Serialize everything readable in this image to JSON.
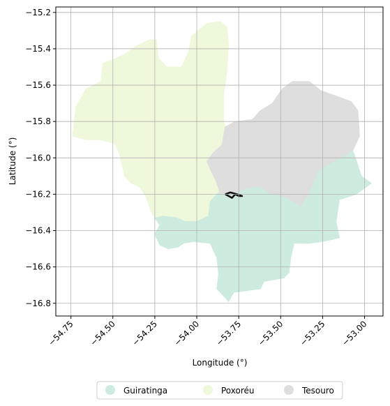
{
  "chart_data": {
    "type": "map",
    "xlabel": "Longitude (°)",
    "ylabel": "Latitude (°)",
    "xlim": [
      -54.84,
      -52.89
    ],
    "ylim": [
      -16.87,
      -15.17
    ],
    "grid": true,
    "legend_placement": "bottom-center",
    "x_ticks": [
      {
        "value": -54.75,
        "label": "−54.75"
      },
      {
        "value": -54.5,
        "label": "−54.50"
      },
      {
        "value": -54.25,
        "label": "−54.25"
      },
      {
        "value": -54.0,
        "label": "−54.00"
      },
      {
        "value": -53.75,
        "label": "−53.75"
      },
      {
        "value": -53.5,
        "label": "−53.50"
      },
      {
        "value": -53.25,
        "label": "−53.25"
      },
      {
        "value": -53.0,
        "label": "−53.00"
      }
    ],
    "y_ticks": [
      {
        "value": -15.2,
        "label": "−15.2"
      },
      {
        "value": -15.4,
        "label": "−15.4"
      },
      {
        "value": -15.6,
        "label": "−15.6"
      },
      {
        "value": -15.8,
        "label": "−15.8"
      },
      {
        "value": -16.0,
        "label": "−16.0"
      },
      {
        "value": -16.2,
        "label": "−16.2"
      },
      {
        "value": -16.4,
        "label": "−16.4"
      },
      {
        "value": -16.6,
        "label": "−16.6"
      },
      {
        "value": -16.8,
        "label": "−16.8"
      }
    ],
    "regions": [
      {
        "name": "Poxoréu",
        "color": "#eef9dc",
        "polygon": [
          [
            -54.74,
            -15.88
          ],
          [
            -54.72,
            -15.72
          ],
          [
            -54.66,
            -15.62
          ],
          [
            -54.57,
            -15.58
          ],
          [
            -54.56,
            -15.48
          ],
          [
            -54.5,
            -15.46
          ],
          [
            -54.43,
            -15.43
          ],
          [
            -54.35,
            -15.38
          ],
          [
            -54.28,
            -15.35
          ],
          [
            -54.24,
            -15.35
          ],
          [
            -54.23,
            -15.45
          ],
          [
            -54.18,
            -15.5
          ],
          [
            -54.09,
            -15.5
          ],
          [
            -54.05,
            -15.42
          ],
          [
            -54.03,
            -15.33
          ],
          [
            -53.98,
            -15.29
          ],
          [
            -53.94,
            -15.26
          ],
          [
            -53.86,
            -15.25
          ],
          [
            -53.82,
            -15.28
          ],
          [
            -53.81,
            -15.38
          ],
          [
            -53.82,
            -15.52
          ],
          [
            -53.84,
            -15.65
          ],
          [
            -53.84,
            -15.8
          ],
          [
            -53.81,
            -15.88
          ],
          [
            -53.82,
            -15.95
          ],
          [
            -53.87,
            -16.03
          ],
          [
            -53.85,
            -16.1
          ],
          [
            -53.87,
            -16.19
          ],
          [
            -53.92,
            -16.24
          ],
          [
            -53.93,
            -16.32
          ],
          [
            -54.0,
            -16.35
          ],
          [
            -54.07,
            -16.35
          ],
          [
            -54.12,
            -16.33
          ],
          [
            -54.2,
            -16.32
          ],
          [
            -54.25,
            -16.33
          ],
          [
            -54.27,
            -16.3
          ],
          [
            -54.3,
            -16.22
          ],
          [
            -54.34,
            -16.16
          ],
          [
            -54.39,
            -16.14
          ],
          [
            -54.43,
            -16.1
          ],
          [
            -54.46,
            -15.98
          ],
          [
            -54.49,
            -15.92
          ],
          [
            -54.58,
            -15.9
          ],
          [
            -54.66,
            -15.9
          ]
        ]
      },
      {
        "name": "Tesouro",
        "color": "#dedede",
        "polygon": [
          [
            -53.85,
            -15.93
          ],
          [
            -53.83,
            -15.83
          ],
          [
            -53.77,
            -15.8
          ],
          [
            -53.67,
            -15.79
          ],
          [
            -53.62,
            -15.74
          ],
          [
            -53.55,
            -15.7
          ],
          [
            -53.49,
            -15.62
          ],
          [
            -53.43,
            -15.58
          ],
          [
            -53.33,
            -15.58
          ],
          [
            -53.26,
            -15.63
          ],
          [
            -53.17,
            -15.66
          ],
          [
            -53.08,
            -15.69
          ],
          [
            -53.04,
            -15.74
          ],
          [
            -53.03,
            -15.88
          ],
          [
            -53.07,
            -15.96
          ],
          [
            -53.1,
            -15.98
          ],
          [
            -53.18,
            -16.02
          ],
          [
            -53.27,
            -16.07
          ],
          [
            -53.3,
            -16.13
          ],
          [
            -53.33,
            -16.2
          ],
          [
            -53.38,
            -16.27
          ],
          [
            -53.47,
            -16.22
          ],
          [
            -53.56,
            -16.2
          ],
          [
            -53.63,
            -16.16
          ],
          [
            -53.7,
            -16.17
          ],
          [
            -53.79,
            -16.2
          ],
          [
            -53.86,
            -16.2
          ],
          [
            -53.88,
            -16.14
          ],
          [
            -53.94,
            -16.02
          ],
          [
            -53.9,
            -15.97
          ]
        ]
      },
      {
        "name": "Guiratinga",
        "color": "#cdebdf",
        "polygon": [
          [
            -53.86,
            -16.2
          ],
          [
            -53.79,
            -16.2
          ],
          [
            -53.7,
            -16.17
          ],
          [
            -53.63,
            -16.16
          ],
          [
            -53.56,
            -16.2
          ],
          [
            -53.47,
            -16.22
          ],
          [
            -53.38,
            -16.27
          ],
          [
            -53.33,
            -16.2
          ],
          [
            -53.3,
            -16.13
          ],
          [
            -53.27,
            -16.07
          ],
          [
            -53.18,
            -16.02
          ],
          [
            -53.1,
            -15.98
          ],
          [
            -53.07,
            -15.96
          ],
          [
            -53.04,
            -16.04
          ],
          [
            -53.02,
            -16.1
          ],
          [
            -52.96,
            -16.14
          ],
          [
            -53.05,
            -16.2
          ],
          [
            -53.15,
            -16.23
          ],
          [
            -53.17,
            -16.35
          ],
          [
            -53.15,
            -16.44
          ],
          [
            -53.25,
            -16.46
          ],
          [
            -53.33,
            -16.47
          ],
          [
            -53.42,
            -16.47
          ],
          [
            -53.44,
            -16.55
          ],
          [
            -53.45,
            -16.63
          ],
          [
            -53.48,
            -16.66
          ],
          [
            -53.6,
            -16.68
          ],
          [
            -53.62,
            -16.72
          ],
          [
            -53.7,
            -16.73
          ],
          [
            -53.78,
            -16.74
          ],
          [
            -53.81,
            -16.79
          ],
          [
            -53.85,
            -16.75
          ],
          [
            -53.88,
            -16.72
          ],
          [
            -53.87,
            -16.64
          ],
          [
            -53.88,
            -16.55
          ],
          [
            -53.92,
            -16.47
          ],
          [
            -54.02,
            -16.46
          ],
          [
            -54.08,
            -16.47
          ],
          [
            -54.11,
            -16.49
          ],
          [
            -54.17,
            -16.5
          ],
          [
            -54.22,
            -16.48
          ],
          [
            -54.25,
            -16.42
          ],
          [
            -54.22,
            -16.37
          ],
          [
            -54.25,
            -16.33
          ],
          [
            -54.2,
            -16.32
          ],
          [
            -54.12,
            -16.33
          ],
          [
            -54.07,
            -16.35
          ],
          [
            -54.0,
            -16.35
          ],
          [
            -53.93,
            -16.32
          ],
          [
            -53.92,
            -16.24
          ],
          [
            -53.87,
            -16.19
          ]
        ]
      }
    ],
    "line_feature": {
      "color": "#111111",
      "path": [
        [
          -53.83,
          -16.2
        ],
        [
          -53.81,
          -16.21
        ],
        [
          -53.79,
          -16.22
        ],
        [
          -53.77,
          -16.2
        ],
        [
          -53.75,
          -16.21
        ],
        [
          -53.73,
          -16.21
        ],
        [
          -53.76,
          -16.2
        ],
        [
          -53.8,
          -16.19
        ],
        [
          -53.83,
          -16.2
        ]
      ]
    },
    "legend": [
      {
        "name": "Guiratinga",
        "color": "#cdebdf"
      },
      {
        "name": "Poxoréu",
        "color": "#eef9dc"
      },
      {
        "name": "Tesouro",
        "color": "#dedede"
      }
    ]
  }
}
